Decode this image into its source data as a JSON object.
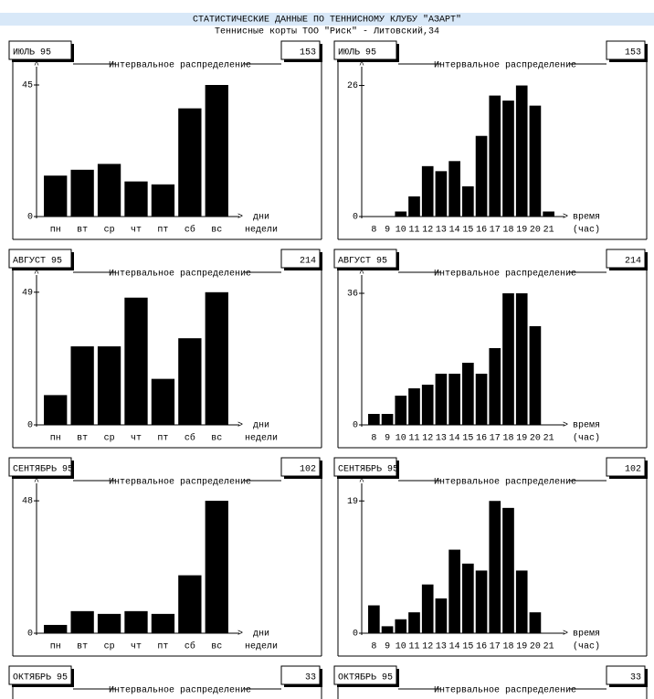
{
  "header": {
    "title": "СТАТИСТИЧЕСКИЕ ДАННЫЕ ПО ТЕННИСНОМУ КЛУБУ \"АЗАРТ\"",
    "subtitle": "Теннисные корты ТОО \"Риск\" - Литовский,34"
  },
  "chart_data": [
    {
      "type": "bar",
      "title": "ИЮЛЬ 95",
      "subtitle": "Интервальное распределение",
      "total": 153,
      "color": "#000000",
      "categories": [
        "пн",
        "вт",
        "ср",
        "чт",
        "пт",
        "сб",
        "вс"
      ],
      "xlabel": [
        "дни",
        "недели"
      ],
      "values": [
        14,
        16,
        18,
        12,
        11,
        37,
        45
      ],
      "ylim": [
        0,
        50
      ],
      "yticks": [
        0,
        45
      ]
    },
    {
      "type": "bar",
      "title": "ИЮЛЬ 95",
      "subtitle": "Интервальное распределение",
      "total": 153,
      "color": "#000000",
      "categories": [
        "8",
        "9",
        "10",
        "11",
        "12",
        "13",
        "14",
        "15",
        "16",
        "17",
        "18",
        "19",
        "20",
        "21"
      ],
      "xlabel": [
        "время",
        "(час)"
      ],
      "values": [
        0,
        0,
        1,
        4,
        10,
        9,
        11,
        6,
        16,
        24,
        23,
        26,
        22,
        1
      ],
      "ylim": [
        0,
        29
      ],
      "yticks": [
        0,
        26
      ]
    },
    {
      "type": "bar",
      "title": "АВГУСТ 95",
      "subtitle": "Интервальное распределение",
      "total": 214,
      "color": "#000000",
      "categories": [
        "пн",
        "вт",
        "ср",
        "чт",
        "пт",
        "сб",
        "вс"
      ],
      "xlabel": [
        "дни",
        "недели"
      ],
      "values": [
        11,
        29,
        29,
        47,
        17,
        32,
        49
      ],
      "ylim": [
        0,
        54
      ],
      "yticks": [
        0,
        49
      ]
    },
    {
      "type": "bar",
      "title": "АВГУСТ 95",
      "subtitle": "Интервальное распределение",
      "total": 214,
      "color": "#000000",
      "categories": [
        "8",
        "9",
        "10",
        "11",
        "12",
        "13",
        "14",
        "15",
        "16",
        "17",
        "18",
        "19",
        "20",
        "21"
      ],
      "xlabel": [
        "время",
        "(час)"
      ],
      "values": [
        3,
        3,
        8,
        10,
        11,
        14,
        14,
        17,
        14,
        21,
        36,
        36,
        27,
        0
      ],
      "ylim": [
        0,
        40
      ],
      "yticks": [
        0,
        36
      ]
    },
    {
      "type": "bar",
      "title": "СЕНТЯБРЬ 95",
      "subtitle": "Интервальное распределение",
      "total": 102,
      "color": "#000000",
      "categories": [
        "пн",
        "вт",
        "ср",
        "чт",
        "пт",
        "сб",
        "вс"
      ],
      "xlabel": [
        "дни",
        "недели"
      ],
      "values": [
        3,
        8,
        7,
        8,
        7,
        21,
        48
      ],
      "ylim": [
        0,
        53
      ],
      "yticks": [
        0,
        48
      ]
    },
    {
      "type": "bar",
      "title": "СЕНТЯБРЬ 95",
      "subtitle": "Интервальное распределение",
      "total": 102,
      "color": "#000000",
      "categories": [
        "8",
        "9",
        "10",
        "11",
        "12",
        "13",
        "14",
        "15",
        "16",
        "17",
        "18",
        "19",
        "20",
        "21"
      ],
      "xlabel": [
        "время",
        "(час)"
      ],
      "values": [
        4,
        1,
        2,
        3,
        7,
        5,
        12,
        10,
        9,
        19,
        18,
        9,
        3,
        0
      ],
      "ylim": [
        0,
        21
      ],
      "yticks": [
        0,
        19
      ]
    },
    {
      "type": "bar",
      "title": "ОКТЯБРЬ 95",
      "subtitle": "Интервальное распределение",
      "total": 33
    },
    {
      "type": "bar",
      "title": "ОКТЯБРЬ 95",
      "subtitle": "Интервальное распределение",
      "total": 33
    }
  ]
}
